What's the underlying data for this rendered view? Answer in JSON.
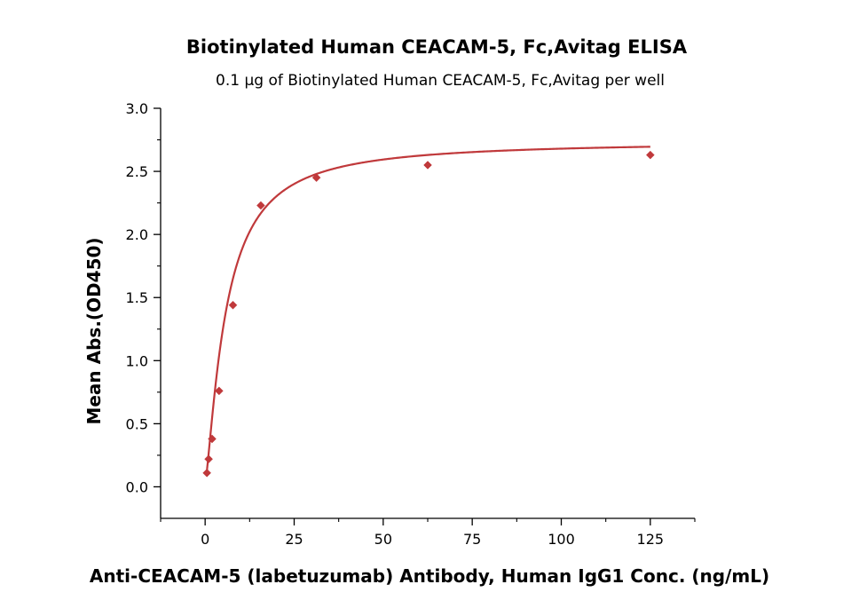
{
  "chart_data": {
    "type": "scatter",
    "title": "Biotinylated Human CEACAM-5, Fc,Avitag ELISA",
    "subtitle": "0.1 μg of Biotinylated Human CEACAM-5, Fc,Avitag per well",
    "xlabel": "Anti-CEACAM-5 (labetuzumab) Antibody, Human IgG1 Conc. (ng/mL)",
    "ylabel": "Mean Abs.(OD450)",
    "xlim": [
      -12.5,
      137.5
    ],
    "ylim": [
      -0.25,
      3.0
    ],
    "x_ticks": [
      0,
      25,
      50,
      75,
      100,
      125
    ],
    "x_tick_labels": [
      "0",
      "25",
      "50",
      "75",
      "100",
      "125"
    ],
    "y_ticks": [
      0.0,
      0.5,
      1.0,
      1.5,
      2.0,
      2.5,
      3.0
    ],
    "y_tick_labels": [
      "0.0",
      "0.5",
      "1.0",
      "1.5",
      "2.0",
      "2.5",
      "3.0"
    ],
    "grid": false,
    "legend": "none",
    "series": [
      {
        "color": "#c0393b",
        "marker": "diamond",
        "x": [
          0.49,
          0.98,
          1.95,
          3.91,
          7.81,
          15.63,
          31.25,
          62.5,
          125
        ],
        "y": [
          0.11,
          0.22,
          0.38,
          0.76,
          1.44,
          2.23,
          2.45,
          2.55,
          2.63
        ],
        "fit": "4PL",
        "fit_params": {
          "bottom": 0.03,
          "top": 2.74,
          "ec50": 5.8,
          "hill": 1.33
        }
      }
    ]
  }
}
